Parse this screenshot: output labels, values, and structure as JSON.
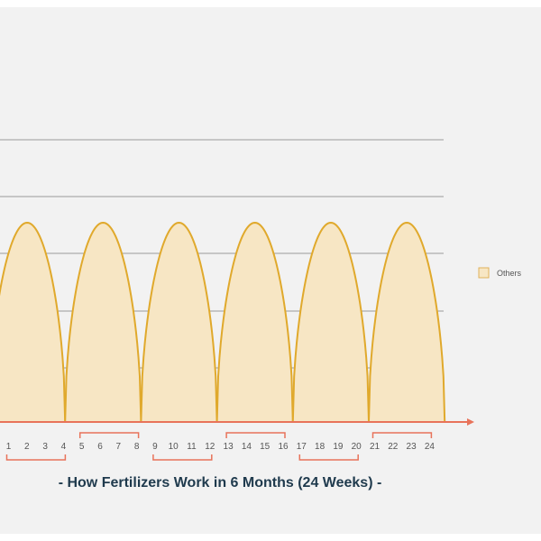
{
  "chart_data": {
    "type": "area",
    "title": "- How Fertilizers Work in 6 Months (24 Weeks) -",
    "x": [
      "1",
      "2",
      "3",
      "4",
      "5",
      "6",
      "7",
      "8",
      "9",
      "10",
      "11",
      "12",
      "13",
      "14",
      "15",
      "16",
      "17",
      "18",
      "19",
      "20",
      "21",
      "22",
      "23",
      "24"
    ],
    "series": [
      {
        "name": "Others",
        "cycles": 6,
        "weeks_per_cycle": 4,
        "peak_value": 1,
        "min_value": 0
      }
    ],
    "groups": [
      {
        "weeks": [
          1,
          4
        ]
      },
      {
        "weeks": [
          5,
          8
        ]
      },
      {
        "weeks": [
          9,
          12
        ]
      },
      {
        "weeks": [
          13,
          16
        ]
      },
      {
        "weeks": [
          17,
          20
        ]
      },
      {
        "weeks": [
          21,
          24
        ]
      }
    ],
    "grid": true,
    "legend_position": "right",
    "colors": {
      "background": "#f2f2f2",
      "fill": "#f7e6c4",
      "stroke": "#e0a92c",
      "axis": "#e8735a",
      "grid": "#9a9a9a",
      "title": "#1f3a4d",
      "legend_swatch_fill": "#f7e6c4",
      "legend_swatch_stroke": "#e0b15a"
    }
  }
}
